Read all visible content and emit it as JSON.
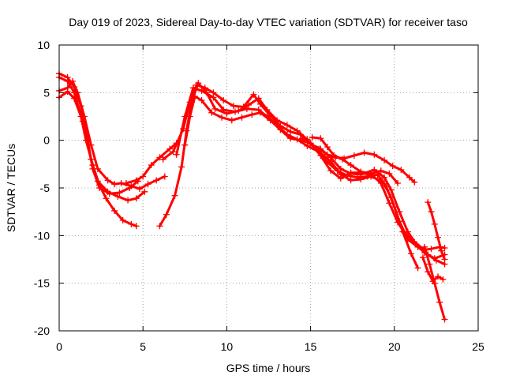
{
  "chart_data": {
    "type": "scatter",
    "title": "Day 019 of 2023, Sidereal Day-to-day VTEC variation (SDTVAR) for receiver taso",
    "xlabel": "GPS time / hours",
    "ylabel": "SDTVAR / TECUs",
    "xlim": [
      0,
      25
    ],
    "ylim": [
      -20,
      10
    ],
    "xticks": [
      0,
      5,
      10,
      15,
      20,
      25
    ],
    "yticks": [
      -20,
      -15,
      -10,
      -5,
      0,
      5,
      10
    ],
    "xtick_labels": [
      "0",
      "5",
      "10",
      "15",
      "20",
      "25"
    ],
    "ytick_labels": [
      "-20",
      "-15",
      "-10",
      "-5",
      "0",
      "5",
      "10"
    ],
    "grid": true,
    "color": "#ff0000",
    "marker": "plus",
    "series": [
      {
        "name": "track-1",
        "segments": [
          [
            [
              0,
              7
            ],
            [
              0.5,
              6.6
            ],
            [
              0.9,
              5.6
            ],
            [
              1.3,
              3.6
            ],
            [
              1.7,
              0
            ],
            [
              2.0,
              -3
            ],
            [
              2.4,
              -5
            ],
            [
              3.0,
              -5.6
            ],
            [
              3.6,
              -5.5
            ],
            [
              4.2,
              -5
            ],
            [
              4.7,
              -4.3
            ]
          ],
          [
            [
              6.2,
              -2
            ],
            [
              6.8,
              -1.2
            ],
            [
              7.4,
              1.2
            ],
            [
              7.8,
              4
            ],
            [
              8.2,
              5.8
            ],
            [
              8.7,
              5.5
            ],
            [
              9.2,
              5
            ],
            [
              9.8,
              4.2
            ],
            [
              10.4,
              3.6
            ],
            [
              11.0,
              3.5
            ],
            [
              11.6,
              4.8
            ],
            [
              12.0,
              3.8
            ],
            [
              12.6,
              2.6
            ],
            [
              13.2,
              1.5
            ],
            [
              13.8,
              0.9
            ],
            [
              14.4,
              0.6
            ],
            [
              15.0,
              -0.4
            ],
            [
              15.6,
              -0.9
            ],
            [
              16.2,
              -1.8
            ],
            [
              16.8,
              -3
            ],
            [
              17.4,
              -3.5
            ],
            [
              18.0,
              -3.6
            ],
            [
              18.8,
              -3.1
            ],
            [
              19.4,
              -3.9
            ],
            [
              19.8,
              -5.2
            ],
            [
              20.3,
              -7.5
            ],
            [
              20.8,
              -9.6
            ],
            [
              21.3,
              -10.9
            ],
            [
              21.8,
              -11.8
            ],
            [
              22.4,
              -12.4
            ],
            [
              23.0,
              -12
            ]
          ]
        ]
      },
      {
        "name": "track-2",
        "segments": [
          [
            [
              0,
              6.6
            ],
            [
              0.5,
              6.2
            ],
            [
              0.9,
              5
            ],
            [
              1.4,
              2
            ],
            [
              1.9,
              -2
            ],
            [
              2.3,
              -4.3
            ],
            [
              2.9,
              -5.4
            ],
            [
              3.5,
              -5.9
            ],
            [
              4.1,
              -6.3
            ],
            [
              4.6,
              -6.1
            ],
            [
              5.1,
              -5.4
            ]
          ],
          [
            [
              7.0,
              -1.5
            ],
            [
              7.5,
              2.5
            ],
            [
              8.0,
              5.5
            ],
            [
              8.5,
              5.2
            ],
            [
              9.2,
              4.5
            ],
            [
              9.8,
              3.2
            ],
            [
              10.5,
              3
            ],
            [
              11.2,
              3.3
            ],
            [
              11.9,
              3.2
            ],
            [
              12.4,
              2.5
            ],
            [
              13.0,
              1.6
            ],
            [
              13.6,
              0.6
            ],
            [
              14.2,
              0.1
            ],
            [
              14.8,
              -0.6
            ],
            [
              15.5,
              -1.2
            ],
            [
              16.2,
              -2.2
            ],
            [
              16.8,
              -3.6
            ],
            [
              17.4,
              -4.2
            ],
            [
              18.0,
              -4.1
            ],
            [
              18.6,
              -3.8
            ],
            [
              19.3,
              -4.3
            ],
            [
              19.8,
              -6
            ],
            [
              20.3,
              -8.5
            ],
            [
              20.8,
              -10.4
            ],
            [
              21.4,
              -11.2
            ],
            [
              22.0,
              -12
            ],
            [
              22.5,
              -12.6
            ],
            [
              23.0,
              -13
            ]
          ]
        ]
      },
      {
        "name": "track-3",
        "segments": [
          [
            [
              0,
              5.2
            ],
            [
              0.5,
              5.5
            ],
            [
              0.8,
              6.2
            ],
            [
              1.1,
              5
            ],
            [
              1.5,
              2.5
            ],
            [
              1.9,
              -0.5
            ],
            [
              2.3,
              -3
            ],
            [
              2.9,
              -4.2
            ],
            [
              3.3,
              -4.6
            ],
            [
              3.7,
              -4.5
            ],
            [
              4.3,
              -4.8
            ],
            [
              4.8,
              -5.1
            ],
            [
              5.3,
              -4.6
            ],
            [
              5.8,
              -4.2
            ],
            [
              6.3,
              -3.8
            ]
          ],
          [
            [
              6.0,
              -9
            ],
            [
              6.4,
              -7.8
            ],
            [
              6.9,
              -5.8
            ],
            [
              7.3,
              -2.8
            ],
            [
              7.6,
              1
            ],
            [
              7.9,
              4
            ],
            [
              8.3,
              6
            ],
            [
              8.8,
              5
            ],
            [
              9.3,
              3.3
            ],
            [
              10.0,
              2.8
            ],
            [
              10.7,
              3.1
            ],
            [
              11.3,
              3.7
            ],
            [
              11.9,
              4.4
            ],
            [
              12.4,
              3.2
            ],
            [
              13.0,
              2.1
            ],
            [
              13.6,
              1.6
            ],
            [
              14.2,
              1
            ],
            [
              14.8,
              0.1
            ],
            [
              15.4,
              -1
            ],
            [
              16.0,
              -2.3
            ],
            [
              16.6,
              -3.2
            ],
            [
              17.2,
              -3.7
            ],
            [
              17.8,
              -3.9
            ],
            [
              18.4,
              -3.8
            ],
            [
              19.0,
              -3.6
            ],
            [
              19.5,
              -4.8
            ],
            [
              20.0,
              -7
            ],
            [
              20.5,
              -9.6
            ],
            [
              21.0,
              -11.9
            ],
            [
              21.4,
              -13.4
            ]
          ]
        ]
      },
      {
        "name": "track-4",
        "segments": [
          [
            [
              0,
              4.5
            ],
            [
              0.5,
              5.1
            ],
            [
              0.9,
              4.4
            ],
            [
              1.3,
              2.5
            ],
            [
              1.6,
              0
            ],
            [
              2.0,
              -2.6
            ],
            [
              2.4,
              -4.7
            ],
            [
              2.8,
              -6.1
            ],
            [
              3.3,
              -7.4
            ],
            [
              3.8,
              -8.4
            ],
            [
              4.3,
              -8.8
            ],
            [
              4.6,
              -9
            ]
          ],
          [
            [
              7.5,
              -0.5
            ],
            [
              7.8,
              2.5
            ],
            [
              8.1,
              4.6
            ],
            [
              8.5,
              4.2
            ],
            [
              9.1,
              2.9
            ],
            [
              9.7,
              2.4
            ],
            [
              10.3,
              2.1
            ],
            [
              10.9,
              2.4
            ],
            [
              11.5,
              2.7
            ],
            [
              12.0,
              2.9
            ],
            [
              12.6,
              2.1
            ],
            [
              13.2,
              1.1
            ],
            [
              13.8,
              0.2
            ],
            [
              14.4,
              0
            ],
            [
              15.0,
              -0.3
            ],
            [
              15.6,
              -1.6
            ],
            [
              16.2,
              -3.2
            ],
            [
              16.8,
              -4
            ],
            [
              17.4,
              -3.4
            ],
            [
              18.0,
              -3.4
            ],
            [
              18.7,
              -3.7
            ],
            [
              19.2,
              -4.5
            ],
            [
              19.7,
              -6.6
            ],
            [
              20.2,
              -8.6
            ],
            [
              20.6,
              -9.7
            ],
            [
              21.2,
              -10.7
            ],
            [
              21.8,
              -11.5
            ],
            [
              22.2,
              -11.4
            ],
            [
              22.7,
              -11.2
            ],
            [
              23.0,
              -11.3
            ]
          ]
        ]
      },
      {
        "name": "track-5",
        "segments": [
          [
            [
              4.0,
              -4.5
            ],
            [
              4.6,
              -4.2
            ],
            [
              5.0,
              -3.8
            ],
            [
              5.5,
              -2.6
            ],
            [
              6.0,
              -1.8
            ],
            [
              6.6,
              -0.9
            ],
            [
              7.0,
              -0.3
            ]
          ],
          [
            [
              14.5,
              0.2
            ],
            [
              15.0,
              -0.4
            ],
            [
              15.5,
              -0.9
            ],
            [
              16.0,
              -1.5
            ],
            [
              16.5,
              -1.8
            ],
            [
              17.0,
              -1.9
            ],
            [
              17.6,
              -1.6
            ],
            [
              18.2,
              -1.3
            ],
            [
              18.8,
              -1.5
            ],
            [
              19.4,
              -2.1
            ],
            [
              19.9,
              -2.7
            ],
            [
              20.4,
              -3.1
            ],
            [
              20.9,
              -3.9
            ],
            [
              21.2,
              -4.4
            ]
          ]
        ]
      },
      {
        "name": "track-6",
        "segments": [
          [
            [
              15.1,
              0.3
            ],
            [
              15.6,
              0.2
            ],
            [
              16.0,
              -0.7
            ],
            [
              16.4,
              -1.6
            ],
            [
              16.9,
              -2
            ],
            [
              17.4,
              -2.6
            ],
            [
              18.0,
              -3.3
            ],
            [
              18.6,
              -3.5
            ],
            [
              19.2,
              -3.2
            ],
            [
              19.7,
              -3.5
            ],
            [
              20.2,
              -4.5
            ]
          ]
        ]
      },
      {
        "name": "track-7",
        "segments": [
          [
            [
              22.0,
              -6.5
            ],
            [
              22.2,
              -7.5
            ],
            [
              22.4,
              -8.8
            ],
            [
              22.6,
              -10.2
            ],
            [
              22.8,
              -11.6
            ],
            [
              23.0,
              -12.5
            ]
          ],
          [
            [
              21.8,
              -11.2
            ],
            [
              22.1,
              -13
            ],
            [
              22.4,
              -15
            ],
            [
              22.7,
              -17
            ],
            [
              23.0,
              -18.8
            ]
          ],
          [
            [
              21.7,
              -12.3
            ],
            [
              22.0,
              -13.8
            ],
            [
              22.3,
              -14.8
            ],
            [
              22.6,
              -14.3
            ],
            [
              22.9,
              -14.6
            ]
          ]
        ]
      }
    ]
  }
}
